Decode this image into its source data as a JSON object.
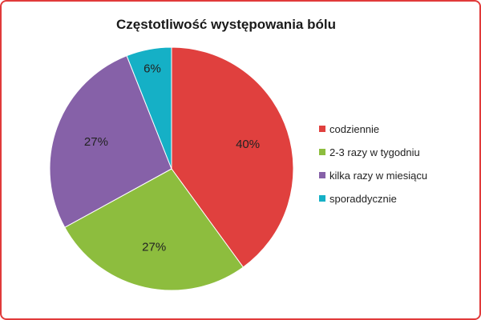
{
  "chart_data": {
    "type": "pie",
    "title": "Częstotliwość występowania bólu",
    "legend_position": "right",
    "slices": [
      {
        "label": "codziennie",
        "value": 40,
        "display": "40%",
        "color": "#e0403e"
      },
      {
        "label": "2-3 razy w tygodniu",
        "value": 27,
        "display": "27%",
        "color": "#8dbd3e"
      },
      {
        "label": "kilka razy w miesiącu",
        "value": 27,
        "display": "27%",
        "color": "#8661a8"
      },
      {
        "label": "sporaddycznie",
        "value": 6,
        "display": "6%",
        "color": "#15b0c6"
      }
    ]
  },
  "colors": {
    "frame_border": "#e13a3a"
  }
}
